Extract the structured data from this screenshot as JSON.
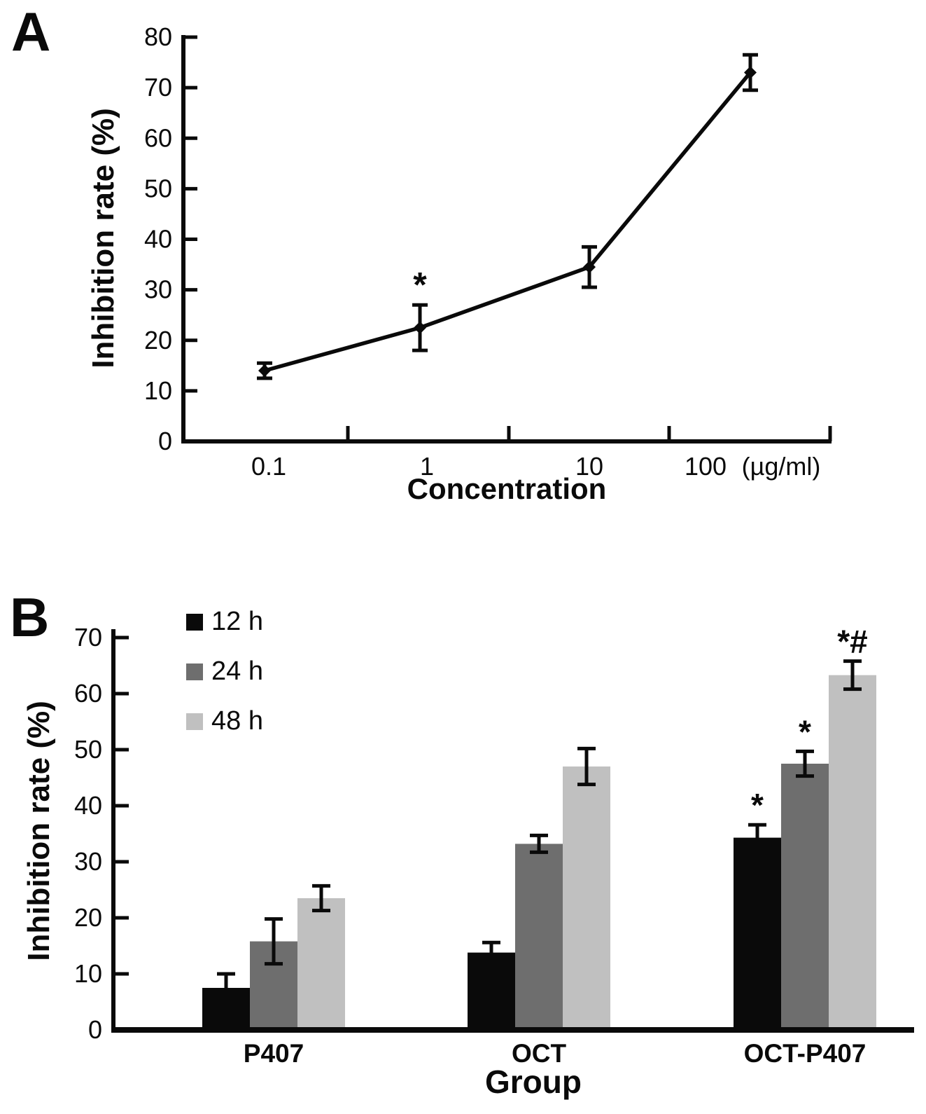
{
  "figure": {
    "panel_a_letter": "A",
    "panel_b_letter": "B"
  },
  "colors": {
    "ink": "#0a0a0a",
    "bar_12h": "#0a0a0a",
    "bar_24h": "#6e6e6e",
    "bar_48h": "#c0c0c0"
  },
  "chart_data": [
    {
      "type": "line",
      "panel_label": "A",
      "title": "",
      "xlabel": "Concentration",
      "ylabel": "Inhibition rate (%)",
      "x_axis": {
        "tick_labels": [
          "0.1",
          "1",
          "10",
          "100"
        ],
        "unit_label": "(µg/ml)",
        "scale": "log-category"
      },
      "y_axis": {
        "min": 0,
        "max": 80,
        "step": 10,
        "tick_labels": [
          "0",
          "10",
          "20",
          "30",
          "40",
          "50",
          "60",
          "70",
          "80"
        ]
      },
      "series": [
        {
          "name": "inhibition-rate",
          "x": [
            0.1,
            1,
            10,
            100
          ],
          "y": [
            14,
            22.5,
            34.5,
            73
          ],
          "err": [
            1.5,
            4.5,
            4.0,
            3.5
          ],
          "annotations": [
            "",
            "*",
            "",
            ""
          ],
          "marker": "diamond",
          "color": "#0a0a0a"
        }
      ],
      "grid": false,
      "legend": null
    },
    {
      "type": "bar",
      "panel_label": "B",
      "title": "",
      "xlabel": "Group",
      "ylabel": "Inhibition rate (%)",
      "categories": [
        "P407",
        "OCT",
        "OCT-P407"
      ],
      "y_axis": {
        "min": 0,
        "max": 70,
        "step": 10,
        "tick_labels": [
          "0",
          "10",
          "20",
          "30",
          "40",
          "50",
          "60",
          "70"
        ]
      },
      "series": [
        {
          "name": "12 h",
          "color": "#0a0a0a",
          "values": [
            7.5,
            13.8,
            34.3
          ],
          "err": [
            2.5,
            1.8,
            2.3
          ],
          "annotations": [
            "",
            "",
            "*"
          ]
        },
        {
          "name": "24 h",
          "color": "#6e6e6e",
          "values": [
            15.8,
            33.2,
            47.5
          ],
          "err": [
            4.0,
            1.5,
            2.2
          ],
          "annotations": [
            "",
            "",
            "*"
          ]
        },
        {
          "name": "48 h",
          "color": "#c0c0c0",
          "values": [
            23.5,
            47.0,
            63.3
          ],
          "err": [
            2.2,
            3.2,
            2.5
          ],
          "annotations": [
            "",
            "",
            "*#"
          ]
        }
      ],
      "legend": {
        "position": "upper-left-inside",
        "entries": [
          "12 h",
          "24 h",
          "48 h"
        ]
      },
      "grid": false
    }
  ]
}
